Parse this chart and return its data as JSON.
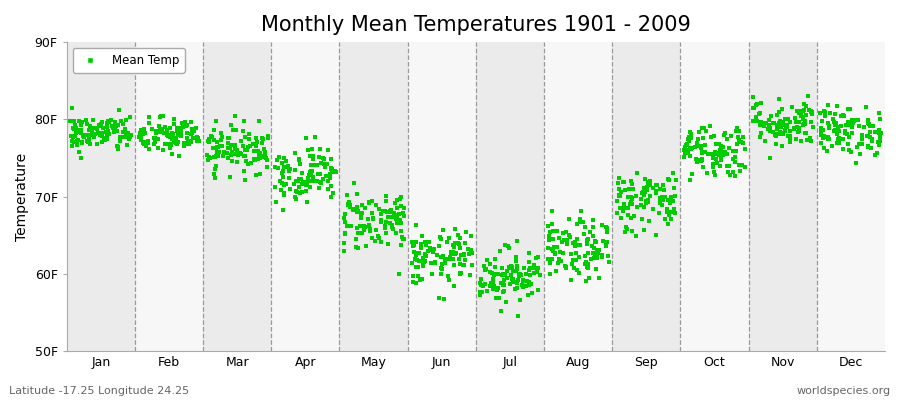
{
  "title": "Monthly Mean Temperatures 1901 - 2009",
  "ylabel": "Temperature",
  "xlabel_bottom_left": "Latitude -17.25 Longitude 24.25",
  "xlabel_bottom_right": "worldspecies.org",
  "ylim": [
    50,
    90
  ],
  "yticks": [
    50,
    60,
    70,
    80,
    90
  ],
  "ytick_labels": [
    "50F",
    "60F",
    "70F",
    "80F",
    "90F"
  ],
  "months": [
    "Jan",
    "Feb",
    "Mar",
    "Apr",
    "May",
    "Jun",
    "Jul",
    "Aug",
    "Sep",
    "Oct",
    "Nov",
    "Dec"
  ],
  "num_years": 109,
  "mean_temps": [
    78.2,
    77.8,
    76.2,
    73.0,
    67.0,
    62.0,
    59.8,
    63.0,
    69.5,
    76.0,
    79.5,
    78.5
  ],
  "std_temps": [
    1.2,
    1.2,
    1.5,
    1.8,
    2.0,
    1.8,
    1.8,
    2.0,
    2.0,
    1.8,
    1.6,
    1.6
  ],
  "marker_color": "#00cc00",
  "marker_size": 3,
  "band_colors": [
    "#ebebeb",
    "#f7f7f7"
  ],
  "background_color": "#ffffff",
  "title_fontsize": 15,
  "axis_label_fontsize": 10,
  "tick_label_fontsize": 9,
  "legend_label": "Mean Temp",
  "dashed_line_color": "#999999",
  "seed": 42
}
